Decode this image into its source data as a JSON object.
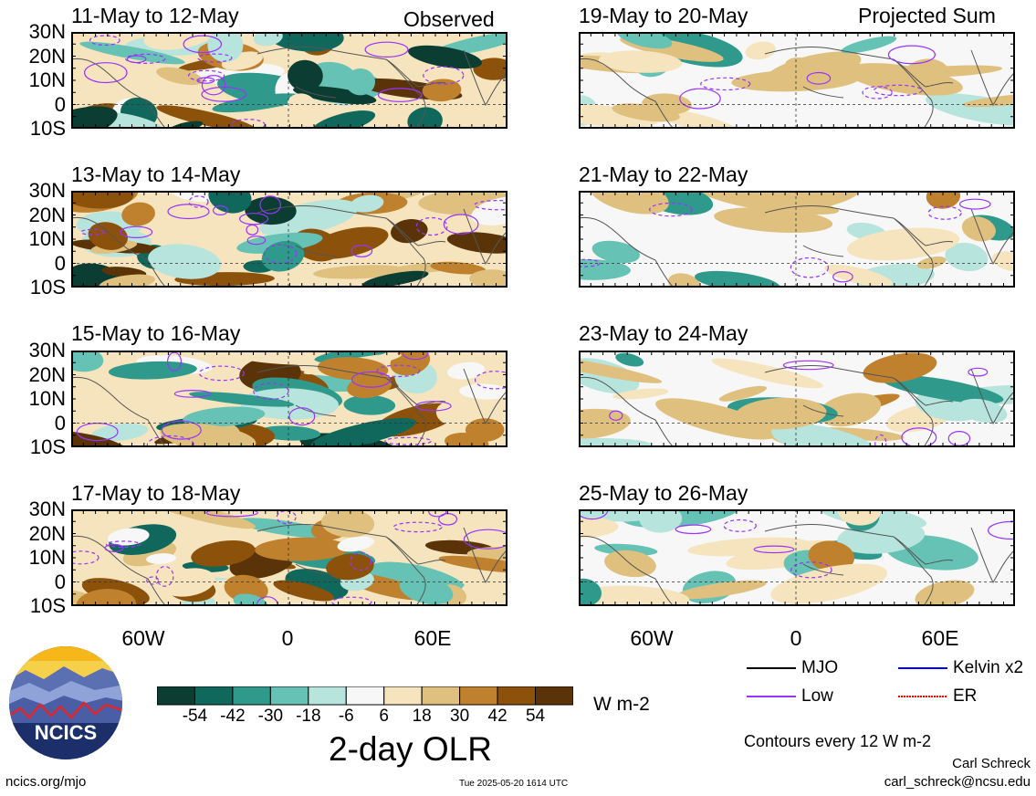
{
  "header": {
    "left_label": "Observed",
    "right_label": "Projected Sum"
  },
  "panels_left": [
    {
      "title": "11-May to 12-May"
    },
    {
      "title": "13-May to 14-May"
    },
    {
      "title": "15-May to 16-May"
    },
    {
      "title": "17-May to 18-May"
    }
  ],
  "panels_right": [
    {
      "title": "19-May to 20-May"
    },
    {
      "title": "21-May to 22-May"
    },
    {
      "title": "23-May to 24-May"
    },
    {
      "title": "25-May to 26-May"
    }
  ],
  "lat_labels": [
    "30N",
    "20N",
    "10N",
    "0",
    "10S"
  ],
  "lon_labels": [
    "60W",
    "0",
    "60E"
  ],
  "colorbar": {
    "title": "2-day OLR",
    "units": "W m-2",
    "ticks": [
      "-54",
      "-42",
      "-30",
      "-18",
      "-6",
      "6",
      "18",
      "30",
      "42",
      "54"
    ],
    "colors": [
      "#0b3d32",
      "#10685c",
      "#2f9a8c",
      "#66c2b4",
      "#b7e4dc",
      "#f7f7f7",
      "#f5e4bd",
      "#dfc07e",
      "#bf812d",
      "#8c510a",
      "#5a3408"
    ]
  },
  "legend": {
    "items": [
      {
        "label": "MJO",
        "color": "#000000"
      },
      {
        "label": "Kelvin x2",
        "color": "#0000ff"
      },
      {
        "label": "Low",
        "color": "#9933ff"
      },
      {
        "label": "ER",
        "color": "#ff0000"
      }
    ],
    "note": "Contours every 12 W m-2"
  },
  "footer": {
    "logo_text": "NCICS",
    "url": "ncics.org/mjo",
    "timestamp": "Tue 2025-05-20 1614 UTC",
    "author": "Carl Schreck",
    "email": "carl_schreck@ncsu.edu"
  }
}
